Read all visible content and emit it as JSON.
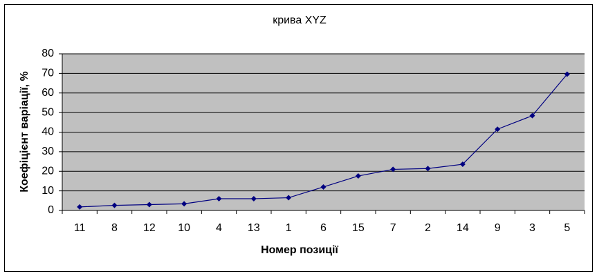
{
  "chart_data": {
    "type": "line",
    "title": "крива XYZ",
    "x_label": "Номер позиції",
    "y_label": "Коефіцієнт варіації, %",
    "categories": [
      "11",
      "8",
      "12",
      "10",
      "4",
      "13",
      "1",
      "6",
      "15",
      "7",
      "2",
      "14",
      "9",
      "3",
      "5"
    ],
    "series": [
      {
        "name": "Коефіцієнт варіації",
        "color": "#000080",
        "values": [
          1.8,
          2.6,
          3.0,
          3.4,
          6.0,
          6.0,
          6.5,
          12.0,
          17.6,
          21.0,
          21.4,
          23.6,
          41.5,
          48.4,
          69.6
        ]
      }
    ],
    "ylim": [
      0,
      80
    ],
    "yticks": [
      0,
      10,
      20,
      30,
      40,
      50,
      60,
      70,
      80
    ],
    "grid": true
  }
}
